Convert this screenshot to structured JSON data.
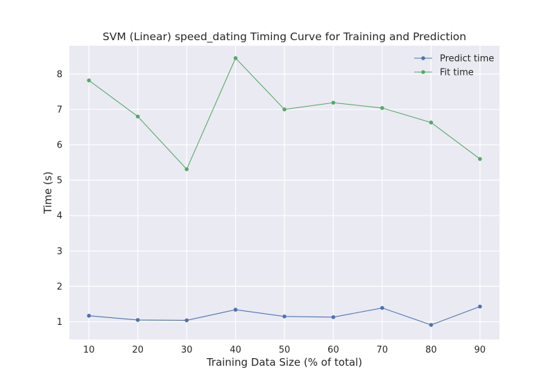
{
  "chart_data": {
    "type": "line",
    "title": "SVM (Linear) speed_dating Timing Curve for Training and Prediction",
    "xlabel": "Training Data Size (% of total)",
    "ylabel": "Time (s)",
    "x": [
      10,
      20,
      30,
      40,
      50,
      60,
      70,
      80,
      90
    ],
    "xticks": [
      10,
      20,
      30,
      40,
      50,
      60,
      70,
      80,
      90
    ],
    "yticks": [
      1,
      2,
      3,
      4,
      5,
      6,
      7,
      8
    ],
    "xlim": [
      6,
      94
    ],
    "ylim": [
      0.5,
      8.8
    ],
    "grid": true,
    "legend_position": "top-right",
    "background": "#eaeaf2",
    "series": [
      {
        "name": "Predict time",
        "color": "#4c72b0",
        "values": [
          1.17,
          1.05,
          1.04,
          1.34,
          1.15,
          1.13,
          1.39,
          0.91,
          1.43
        ]
      },
      {
        "name": "Fit time",
        "color": "#55a868",
        "values": [
          7.82,
          6.8,
          5.31,
          8.45,
          7.0,
          7.19,
          7.04,
          6.63,
          5.6
        ]
      }
    ]
  }
}
